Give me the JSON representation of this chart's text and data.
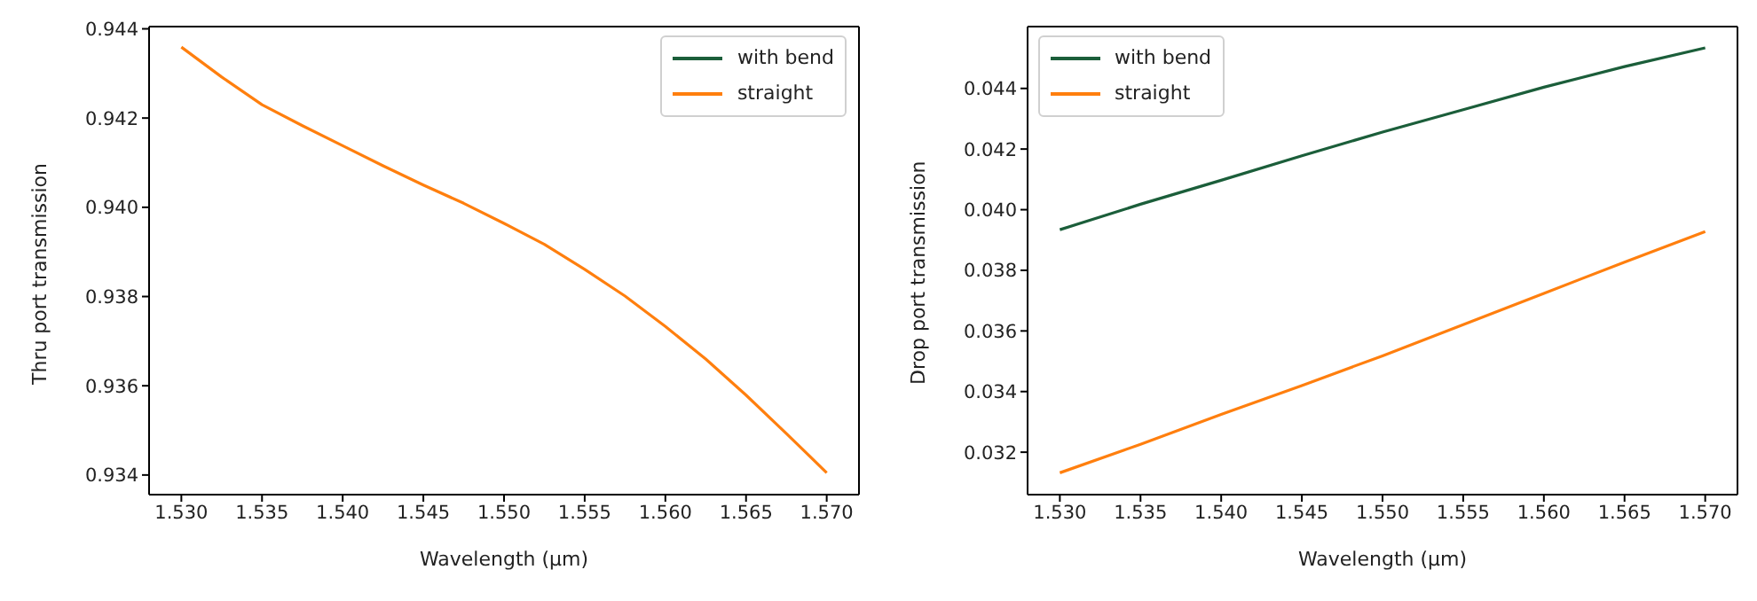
{
  "chart_data": [
    {
      "type": "line",
      "xlabel": "Wavelength (µm)",
      "ylabel": "Thru port transmission",
      "legend": "top right",
      "grid": false,
      "marker": "none",
      "line_style": "solid",
      "xlim": [
        1.528,
        1.572
      ],
      "xticks": [
        {
          "value": 1.53,
          "label": "1.530"
        },
        {
          "value": 1.535,
          "label": "1.535"
        },
        {
          "value": 1.54,
          "label": "1.540"
        },
        {
          "value": 1.545,
          "label": "1.545"
        },
        {
          "value": 1.55,
          "label": "1.550"
        },
        {
          "value": 1.555,
          "label": "1.555"
        },
        {
          "value": 1.56,
          "label": "1.560"
        },
        {
          "value": 1.565,
          "label": "1.565"
        },
        {
          "value": 1.57,
          "label": "1.570"
        }
      ],
      "ylim": [
        0.93356,
        0.94405
      ],
      "yticks": [
        0.934,
        0.936,
        0.938,
        {
          "value": 0.94,
          "label": "0.940"
        },
        0.942,
        0.944
      ],
      "x": [
        1.53,
        1.5325,
        1.535,
        1.5375,
        1.54,
        1.5425,
        1.545,
        1.5475,
        1.55,
        1.5525,
        1.555,
        1.5575,
        1.56,
        1.5625,
        1.565,
        1.5675,
        1.57
      ],
      "series": [
        {
          "name": "with bend",
          "color": "#1b5e3a",
          "values": [
            null,
            null,
            null,
            null,
            null,
            null,
            null,
            null,
            null,
            null,
            null,
            null,
            null,
            null,
            null,
            null,
            null
          ]
        },
        {
          "name": "straight",
          "color": "#ff7f0e",
          "values": [
            0.94359,
            0.94292,
            0.9423,
            0.94183,
            0.94138,
            0.94093,
            0.9405,
            0.94009,
            0.93964,
            0.93917,
            0.93861,
            0.93801,
            0.93733,
            0.9366,
            0.93579,
            0.93493,
            0.93405
          ]
        }
      ]
    },
    {
      "type": "line",
      "xlabel": "Wavelength (µm)",
      "ylabel": "Drop port transmission",
      "legend": "top left",
      "grid": false,
      "marker": "none",
      "line_style": "solid",
      "xlim": [
        1.528,
        1.572
      ],
      "xticks": [
        {
          "value": 1.53,
          "label": "1.530"
        },
        {
          "value": 1.535,
          "label": "1.535"
        },
        {
          "value": 1.54,
          "label": "1.540"
        },
        {
          "value": 1.545,
          "label": "1.545"
        },
        {
          "value": 1.55,
          "label": "1.550"
        },
        {
          "value": 1.555,
          "label": "1.555"
        },
        {
          "value": 1.56,
          "label": "1.560"
        },
        {
          "value": 1.565,
          "label": "1.565"
        },
        {
          "value": 1.57,
          "label": "1.570"
        }
      ],
      "ylim": [
        0.0306,
        0.04604
      ],
      "yticks": [
        0.032,
        0.034,
        0.036,
        0.038,
        {
          "value": 0.04,
          "label": "0.040"
        },
        0.042,
        0.044
      ],
      "x": [
        1.53,
        1.535,
        1.54,
        1.545,
        1.55,
        1.555,
        1.56,
        1.565,
        1.57
      ],
      "series": [
        {
          "name": "with bend",
          "color": "#1b5e3a",
          "values": [
            0.03934,
            0.04018,
            0.04097,
            0.04178,
            0.04256,
            0.0433,
            0.04404,
            0.04472,
            0.04534
          ]
        },
        {
          "name": "straight",
          "color": "#ff7f0e",
          "values": [
            0.03132,
            0.03226,
            0.03325,
            0.0342,
            0.03518,
            0.03621,
            0.03724,
            0.03827,
            0.03928
          ]
        }
      ]
    }
  ]
}
